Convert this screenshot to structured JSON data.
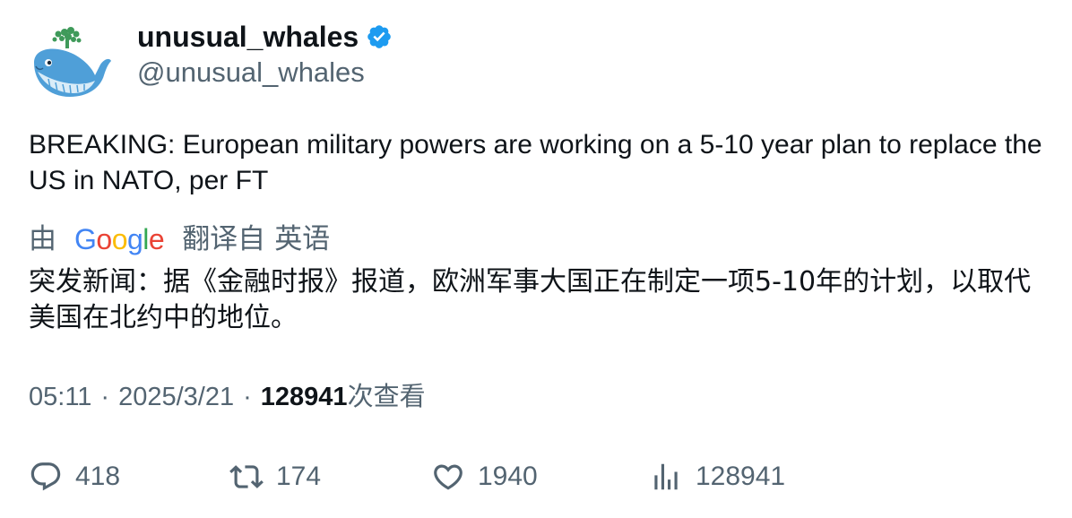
{
  "author": {
    "display_name": "unusual_whales",
    "handle": "@unusual_whales",
    "verified": true,
    "verified_color": "#1d9bf0"
  },
  "tweet": {
    "text": "BREAKING: European military powers are working on a 5-10 year plan to replace the US in NATO, per FT"
  },
  "translation": {
    "by_label": "由",
    "provider": "Google",
    "from_label": "翻译自",
    "source_language": "英语",
    "translated_text": "突发新闻：据《金融时报》报道，欧洲军事大国正在制定一项5-10年的计划，以取代美国在北约中的地位。"
  },
  "meta": {
    "time": "05:11",
    "separator": "·",
    "date": "2025/3/21",
    "views_count": "128941",
    "views_label": "次查看"
  },
  "actions": {
    "replies": "418",
    "retweets": "174",
    "likes": "1940",
    "views": "128941"
  },
  "icons": [
    "whale-avatar-icon",
    "verified-badge-icon",
    "reply-icon",
    "retweet-icon",
    "like-icon",
    "views-icon"
  ]
}
